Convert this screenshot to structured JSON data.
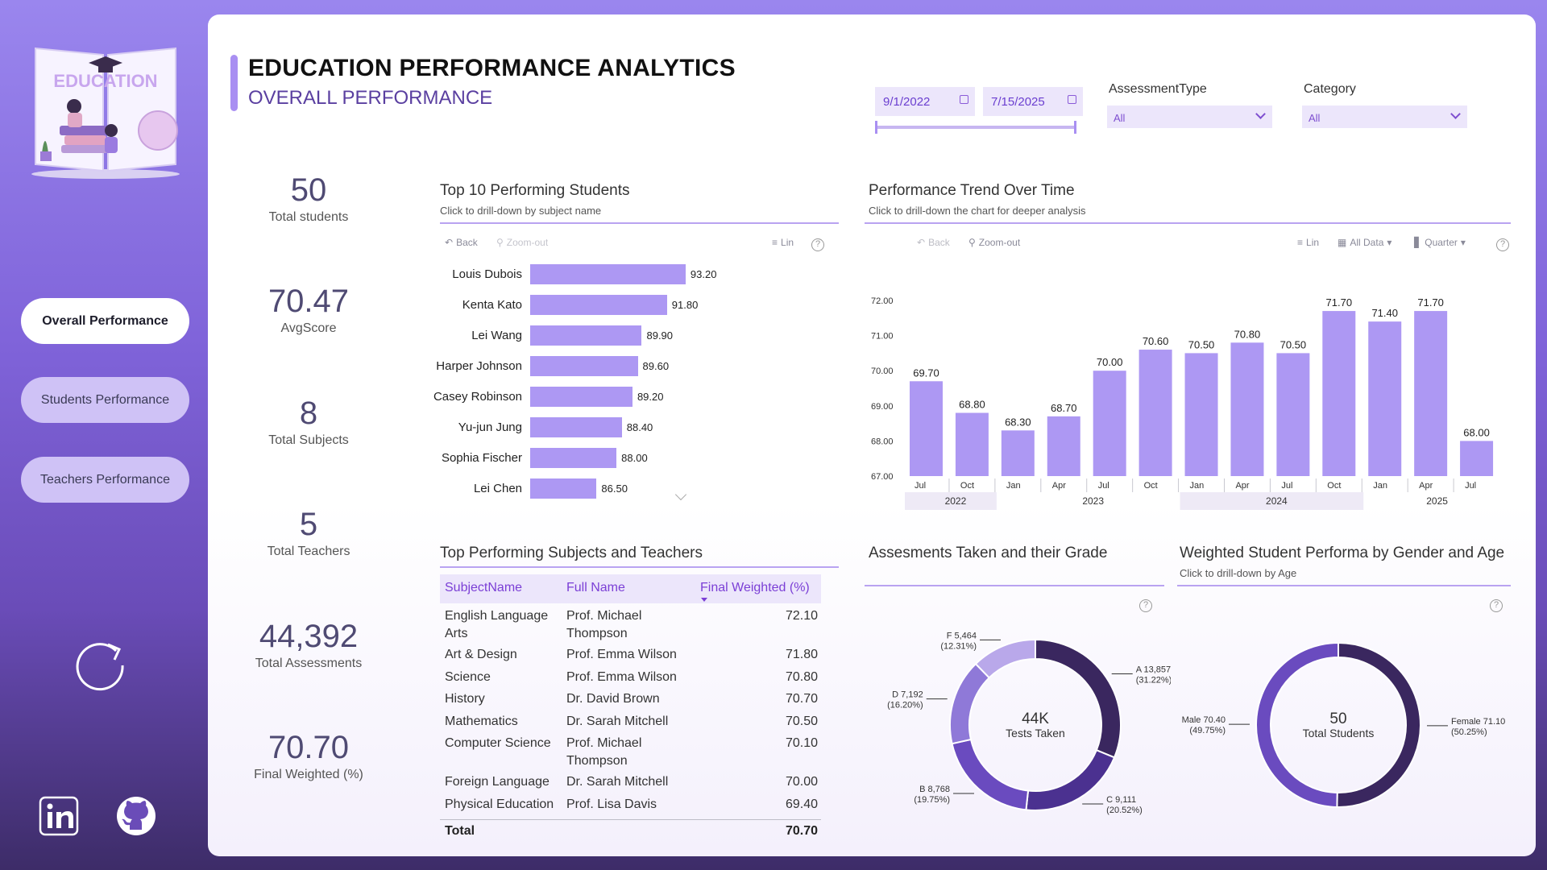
{
  "logo": {
    "text": "EDUCATION"
  },
  "nav": {
    "overall": "Overall Performance",
    "students": "Students Performance",
    "teachers": "Teachers Performance"
  },
  "header": {
    "title": "EDUCATION PERFORMANCE ANALYTICS",
    "subtitle": "OVERALL PERFORMANCE"
  },
  "filters": {
    "date_from": "9/1/2022",
    "date_to": "7/15/2025",
    "assessment_label": "AssessmentType",
    "assessment_value": "All",
    "category_label": "Category",
    "category_value": "All"
  },
  "kpis": [
    {
      "value": "50",
      "label": "Total students"
    },
    {
      "value": "70.47",
      "label": "AvgScore"
    },
    {
      "value": "8",
      "label": "Total Subjects"
    },
    {
      "value": "5",
      "label": "Total Teachers"
    },
    {
      "value": "44,392",
      "label": "Total Assessments"
    },
    {
      "value": "70.70",
      "label": "Final Weighted (%)"
    }
  ],
  "top_students": {
    "title": "Top 10 Performing Students",
    "subtitle": "Click to drill-down by subject name",
    "toolbar": {
      "back": "Back",
      "zoom": "Zoom-out",
      "lin": "Lin"
    }
  },
  "trend": {
    "title": "Performance Trend Over Time",
    "subtitle": "Click to drill-down the chart for deeper analysis",
    "toolbar": {
      "back": "Back",
      "zoom": "Zoom-out",
      "lin": "Lin",
      "alldata": "All Data",
      "quarter": "Quarter"
    }
  },
  "table": {
    "title": "Top Performing Subjects and Teachers",
    "headers": [
      "SubjectName",
      "Full Name",
      "Final Weighted (%)"
    ],
    "rows": [
      {
        "subject": "English Language Arts",
        "teacher": "Prof. Michael Thompson",
        "value": "72.10"
      },
      {
        "subject": "Art & Design",
        "teacher": "Prof. Emma Wilson",
        "value": "71.80"
      },
      {
        "subject": "Science",
        "teacher": "Prof. Emma Wilson",
        "value": "70.80"
      },
      {
        "subject": "History",
        "teacher": "Dr. David Brown",
        "value": "70.70"
      },
      {
        "subject": "Mathematics",
        "teacher": "Dr. Sarah Mitchell",
        "value": "70.50"
      },
      {
        "subject": "Computer Science",
        "teacher": "Prof. Michael Thompson",
        "value": "70.10"
      },
      {
        "subject": "Foreign Language",
        "teacher": "Dr. Sarah Mitchell",
        "value": "70.00"
      },
      {
        "subject": "Physical Education",
        "teacher": "Prof. Lisa Davis",
        "value": "69.40"
      }
    ],
    "total_label": "Total",
    "total_value": "70.70"
  },
  "grades": {
    "title": "Assesments Taken and their Grade",
    "center_value": "44K",
    "center_label": "Tests Taken"
  },
  "gender": {
    "title": "Weighted Student Performa by Gender and Age",
    "subtitle": "Click to drill-down by Age",
    "center_value": "50",
    "center_label": "Total Students"
  },
  "chart_data": [
    {
      "type": "bar",
      "orientation": "horizontal",
      "title": "Top 10 Performing Students",
      "categories": [
        "Louis Dubois",
        "Kenta Kato",
        "Lei Wang",
        "Harper Johnson",
        "Casey Robinson",
        "Yu-jun Jung",
        "Sophia Fischer",
        "Lei Chen"
      ],
      "values": [
        93.2,
        91.8,
        89.9,
        89.6,
        89.2,
        88.4,
        88.0,
        86.5
      ],
      "labels": [
        "93.20",
        "91.80",
        "89.90",
        "89.60",
        "89.20",
        "88.40",
        "88.00",
        "86.50"
      ],
      "xlim": [
        81.5,
        100
      ]
    },
    {
      "type": "bar",
      "title": "Performance Trend Over Time",
      "categories": [
        "Jul",
        "Oct",
        "Jan",
        "Apr",
        "Jul",
        "Oct",
        "Jan",
        "Apr",
        "Jul",
        "Oct",
        "Jan",
        "Apr",
        "Jul"
      ],
      "year_groups": [
        {
          "year": "2022",
          "count": 2
        },
        {
          "year": "2023",
          "count": 4
        },
        {
          "year": "2024",
          "count": 4
        },
        {
          "year": "2025",
          "count": 3
        }
      ],
      "values": [
        69.7,
        68.8,
        68.3,
        68.7,
        70.0,
        70.6,
        70.5,
        70.8,
        70.5,
        71.7,
        71.4,
        71.7,
        68.0
      ],
      "labels": [
        "69.70",
        "68.80",
        "68.30",
        "68.70",
        "70.00",
        "70.60",
        "70.50",
        "70.80",
        "70.50",
        "71.70",
        "71.40",
        "71.70",
        "68.00"
      ],
      "yticks": [
        "72.00",
        "71.00",
        "70.00",
        "69.00",
        "68.00",
        "67.00"
      ],
      "ylim": [
        67,
        72
      ],
      "grid": false
    },
    {
      "type": "pie",
      "variant": "donut",
      "title": "Assesments Taken and their Grade",
      "slices": [
        {
          "name": "A",
          "value": 13857,
          "label": "A 13,857",
          "pct": "(31.22%)",
          "color": "#3a275f"
        },
        {
          "name": "C",
          "value": 9111,
          "label": "C 9,111",
          "pct": "(20.52%)",
          "color": "#4b3190"
        },
        {
          "name": "B",
          "value": 8768,
          "label": "B 8,768",
          "pct": "(19.75%)",
          "color": "#6a4bbf"
        },
        {
          "name": "D",
          "value": 7192,
          "label": "D 7,192",
          "pct": "(16.20%)",
          "color": "#8f79d8"
        },
        {
          "name": "F",
          "value": 5464,
          "label": "F 5,464",
          "pct": "(12.31%)",
          "color": "#b9a8ea"
        }
      ]
    },
    {
      "type": "pie",
      "variant": "donut",
      "title": "Weighted Student Performa by Gender and Age",
      "slices": [
        {
          "name": "Female",
          "value": 71.1,
          "label": "Female 71.10",
          "pct": "(50.25%)",
          "color": "#3a275f"
        },
        {
          "name": "Male",
          "value": 70.4,
          "label": "Male 70.40",
          "pct": "(49.75%)",
          "color": "#6a4bbf"
        }
      ]
    }
  ]
}
